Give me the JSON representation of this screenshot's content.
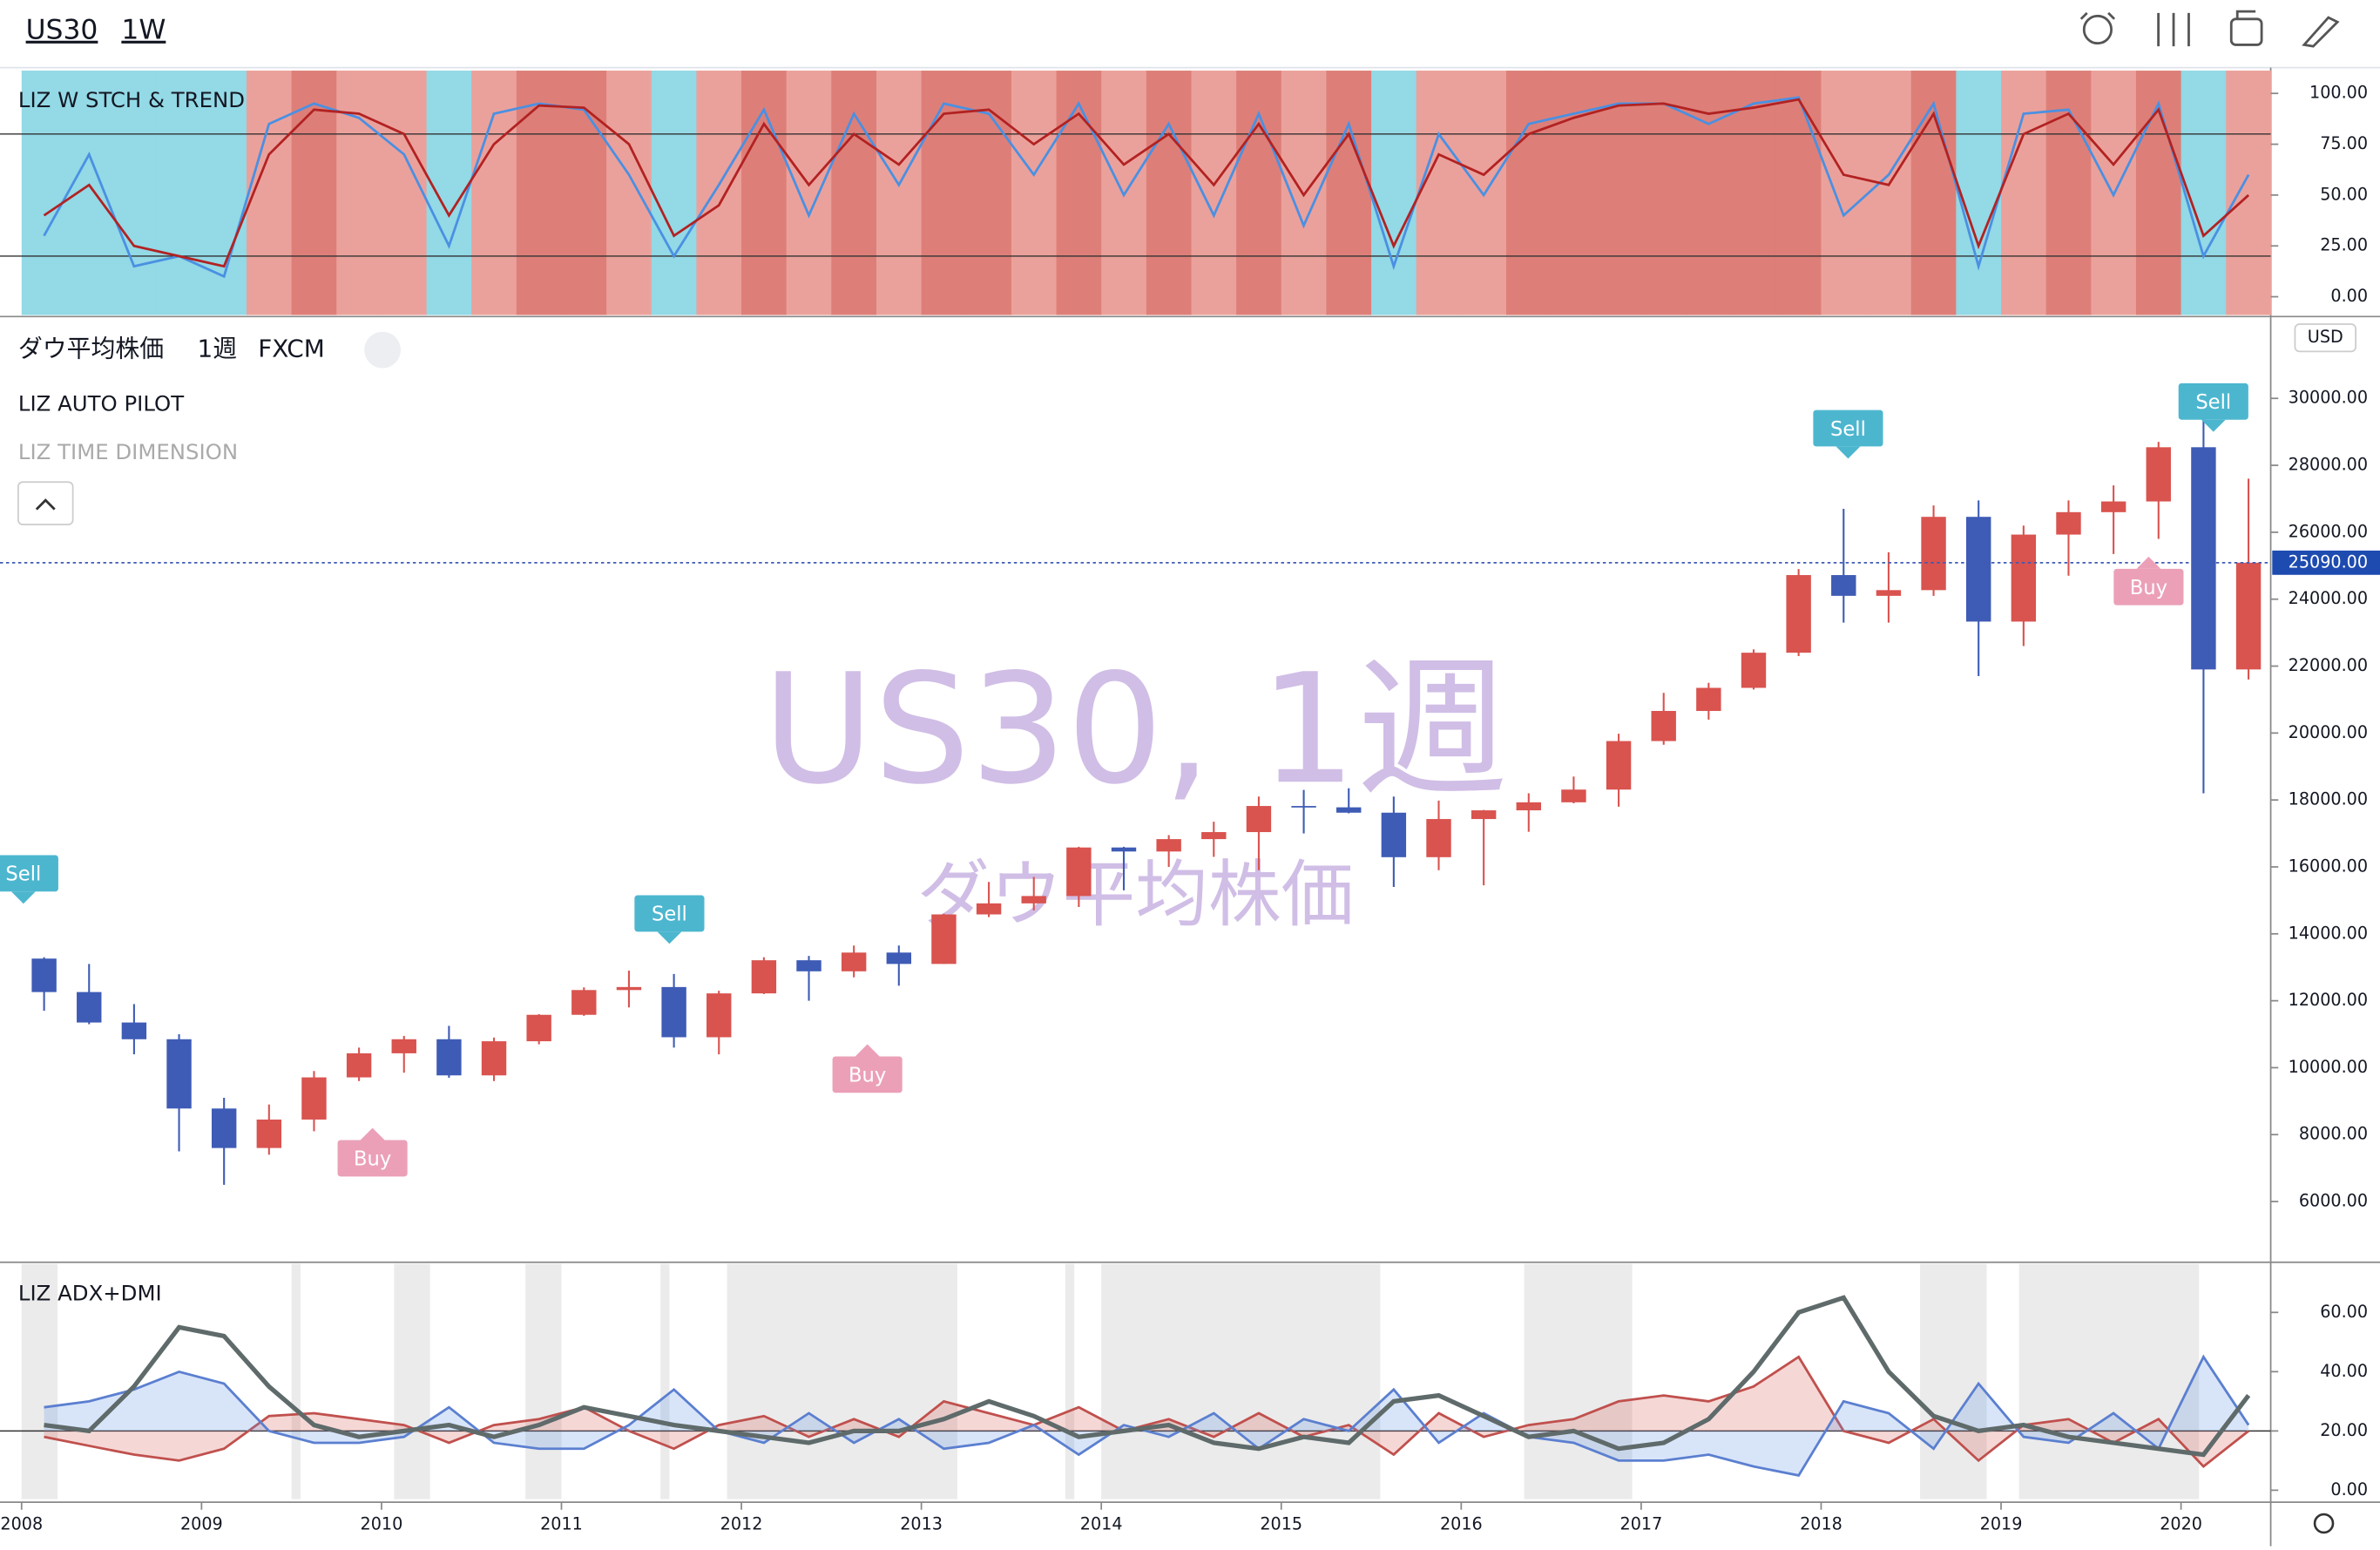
{
  "header": {
    "symbol": "US30",
    "interval": "1W"
  },
  "chart_data": [
    {
      "type": "line",
      "title": "LIZ W STCH & TREND",
      "x": [
        2008.125,
        2008.375,
        2008.625,
        2008.875,
        2009.125,
        2009.375,
        2009.625,
        2009.875,
        2010.125,
        2010.375,
        2010.625,
        2010.875,
        2011.125,
        2011.375,
        2011.625,
        2011.875,
        2012.125,
        2012.375,
        2012.625,
        2012.875,
        2013.125,
        2013.375,
        2013.625,
        2013.875,
        2014.125,
        2014.375,
        2014.625,
        2014.875,
        2015.125,
        2015.375,
        2015.625,
        2015.875,
        2016.125,
        2016.375,
        2016.625,
        2016.875,
        2017.125,
        2017.375,
        2017.625,
        2017.875,
        2018.125,
        2018.375,
        2018.625,
        2018.875,
        2019.125,
        2019.375,
        2019.625,
        2019.875,
        2020.125,
        2020.375
      ],
      "series": [
        {
          "color": "#4a90e2",
          "values": [
            30,
            70,
            15,
            20,
            10,
            85,
            95,
            88,
            70,
            25,
            90,
            95,
            92,
            60,
            20,
            55,
            92,
            40,
            90,
            55,
            95,
            90,
            60,
            95,
            50,
            85,
            40,
            90,
            35,
            85,
            15,
            80,
            50,
            85,
            90,
            95,
            95,
            85,
            95,
            98,
            40,
            60,
            95,
            15,
            90,
            92,
            50,
            95,
            20,
            60
          ]
        },
        {
          "color": "#b22222",
          "values": [
            40,
            55,
            25,
            20,
            15,
            70,
            92,
            90,
            80,
            40,
            75,
            94,
            93,
            75,
            30,
            45,
            85,
            55,
            80,
            65,
            90,
            92,
            75,
            90,
            65,
            80,
            55,
            85,
            50,
            80,
            25,
            70,
            60,
            80,
            88,
            94,
            95,
            90,
            93,
            97,
            60,
            55,
            90,
            25,
            80,
            90,
            65,
            92,
            30,
            50
          ]
        }
      ],
      "zone_palette": [
        "#93d9e6",
        "#eba19b",
        "#dd7f78"
      ],
      "zones": [
        0,
        0,
        0,
        0,
        0,
        1,
        2,
        1,
        1,
        0,
        1,
        2,
        2,
        1,
        0,
        1,
        2,
        1,
        2,
        1,
        2,
        2,
        1,
        2,
        1,
        2,
        1,
        2,
        1,
        2,
        0,
        1,
        1,
        2,
        2,
        2,
        2,
        2,
        2,
        2,
        1,
        1,
        2,
        0,
        1,
        2,
        1,
        2,
        0,
        1
      ],
      "ylim": [
        -9,
        111.2
      ],
      "yticks": [
        {
          "value": 0,
          "label": "0.00"
        },
        {
          "value": 25,
          "label": "25.00"
        },
        {
          "value": 50,
          "label": "50.00"
        },
        {
          "value": 75,
          "label": "75.00"
        },
        {
          "value": 100,
          "label": "100.00"
        }
      ],
      "levels": [
        80,
        20
      ]
    },
    {
      "type": "candlestick",
      "title": "ダウ平均株価",
      "interval": "1週",
      "source": "FXCM",
      "indicators": [
        "LIZ AUTO PILOT",
        "LIZ TIME DIMENSION"
      ],
      "watermark": [
        "US30, 1週",
        "ダウ平均株価"
      ],
      "x": [
        2008.125,
        2008.375,
        2008.625,
        2008.875,
        2009.125,
        2009.375,
        2009.625,
        2009.875,
        2010.125,
        2010.375,
        2010.625,
        2010.875,
        2011.125,
        2011.375,
        2011.625,
        2011.875,
        2012.125,
        2012.375,
        2012.625,
        2012.875,
        2013.125,
        2013.375,
        2013.625,
        2013.875,
        2014.125,
        2014.375,
        2014.625,
        2014.875,
        2015.125,
        2015.375,
        2015.625,
        2015.875,
        2016.125,
        2016.375,
        2016.625,
        2016.875,
        2017.125,
        2017.375,
        2017.625,
        2017.875,
        2018.125,
        2018.375,
        2018.625,
        2018.875,
        2019.125,
        2019.375,
        2019.625,
        2019.875,
        2020.125,
        2020.375
      ],
      "open": [
        13260,
        12260,
        11350,
        10850,
        8780,
        7600,
        8450,
        9710,
        10430,
        10850,
        9770,
        10790,
        11580,
        12320,
        12410,
        10910,
        12220,
        13210,
        12880,
        13440,
        13100,
        14580,
        14910,
        15130,
        16580,
        16460,
        16830,
        17040,
        17820,
        17780,
        17620,
        16290,
        17430,
        17690,
        17930,
        18310,
        19760,
        20660,
        21350,
        22400,
        24720,
        24100,
        24270,
        26460,
        23330,
        25930,
        26600,
        26920,
        28540,
        21900
      ],
      "high": [
        13300,
        13100,
        11900,
        11000,
        9100,
        8900,
        9900,
        10600,
        10950,
        11250,
        10900,
        11600,
        12400,
        12900,
        12800,
        12300,
        13300,
        13340,
        13650,
        13650,
        14600,
        15550,
        15700,
        16600,
        16600,
        16950,
        17350,
        18100,
        18300,
        18350,
        18100,
        17980,
        17700,
        18200,
        18700,
        19980,
        21200,
        21500,
        22500,
        24900,
        26700,
        25400,
        26800,
        26950,
        26200,
        26950,
        27400,
        28700,
        29600,
        27600
      ],
      "low": [
        11700,
        11300,
        10400,
        7500,
        6500,
        7400,
        8100,
        9600,
        9850,
        9700,
        9600,
        10700,
        11550,
        11800,
        10600,
        10400,
        12200,
        12000,
        12700,
        12450,
        13100,
        14500,
        14700,
        14800,
        15300,
        16000,
        16300,
        15900,
        17000,
        17600,
        15400,
        15900,
        15450,
        17050,
        17900,
        17800,
        19650,
        20400,
        21300,
        22300,
        23300,
        23300,
        24100,
        21700,
        22600,
        24700,
        25350,
        25800,
        18200,
        21600
      ],
      "close": [
        12260,
        11350,
        10850,
        8780,
        7600,
        8450,
        9710,
        10430,
        10850,
        9770,
        10790,
        11580,
        12320,
        12410,
        10910,
        12220,
        13210,
        12880,
        13440,
        13100,
        14580,
        14910,
        15130,
        16580,
        16460,
        16830,
        17040,
        17820,
        17780,
        17620,
        16290,
        17430,
        17690,
        17930,
        18310,
        19760,
        20660,
        21350,
        22400,
        24720,
        24100,
        24270,
        26460,
        23330,
        25930,
        26600,
        26920,
        28540,
        21900,
        25090
      ],
      "up_color": "#d9534f",
      "down_color": "#3e5bb5",
      "ylim": [
        4230,
        32400
      ],
      "yticks": [
        {
          "value": 6000,
          "label": "6000.00"
        },
        {
          "value": 8000,
          "label": "8000.00"
        },
        {
          "value": 10000,
          "label": "10000.00"
        },
        {
          "value": 12000,
          "label": "12000.00"
        },
        {
          "value": 14000,
          "label": "14000.00"
        },
        {
          "value": 16000,
          "label": "16000.00"
        },
        {
          "value": 18000,
          "label": "18000.00"
        },
        {
          "value": 20000,
          "label": "20000.00"
        },
        {
          "value": 22000,
          "label": "22000.00"
        },
        {
          "value": 24000,
          "label": "24000.00"
        },
        {
          "value": 26000,
          "label": "26000.00"
        },
        {
          "value": 28000,
          "label": "28000.00"
        },
        {
          "value": 30000,
          "label": "30000.00"
        }
      ],
      "y_unit": "USD",
      "last_price": {
        "value": 25090,
        "label": "25090.00"
      },
      "signals": [
        {
          "label": "Sell",
          "x": 2008.01,
          "value": 14900
        },
        {
          "label": "Buy",
          "x": 2009.95,
          "value": 8200
        },
        {
          "label": "Sell",
          "x": 2011.6,
          "value": 13700
        },
        {
          "label": "Buy",
          "x": 2012.7,
          "value": 10700
        },
        {
          "label": "Sell",
          "x": 2018.15,
          "value": 28200
        },
        {
          "label": "Buy",
          "x": 2019.82,
          "value": 25270
        },
        {
          "label": "Sell",
          "x": 2020.18,
          "value": 29000
        }
      ],
      "sell_color": "#4db6cf",
      "buy_color": "#eba0b8"
    },
    {
      "type": "line",
      "title": "LIZ ADX+DMI",
      "x": [
        2008.125,
        2008.375,
        2008.625,
        2008.875,
        2009.125,
        2009.375,
        2009.625,
        2009.875,
        2010.125,
        2010.375,
        2010.625,
        2010.875,
        2011.125,
        2011.375,
        2011.625,
        2011.875,
        2012.125,
        2012.375,
        2012.625,
        2012.875,
        2013.125,
        2013.375,
        2013.625,
        2013.875,
        2014.125,
        2014.375,
        2014.625,
        2014.875,
        2015.125,
        2015.375,
        2015.625,
        2015.875,
        2016.125,
        2016.375,
        2016.625,
        2016.875,
        2017.125,
        2017.375,
        2017.625,
        2017.875,
        2018.125,
        2018.375,
        2018.625,
        2018.875,
        2019.125,
        2019.375,
        2019.625,
        2019.875,
        2020.125,
        2020.375
      ],
      "series": [
        {
          "color": "#c0504d",
          "fill": "rgba(217,100,90,0.25)",
          "values": [
            18,
            15,
            12,
            10,
            14,
            25,
            26,
            24,
            22,
            16,
            22,
            24,
            28,
            20,
            14,
            22,
            25,
            18,
            24,
            18,
            30,
            26,
            22,
            28,
            20,
            24,
            18,
            26,
            18,
            22,
            12,
            26,
            18,
            22,
            24,
            30,
            32,
            30,
            35,
            45,
            20,
            16,
            24,
            10,
            22,
            24,
            16,
            24,
            8,
            20
          ]
        },
        {
          "color": "#5b7fd0",
          "fill": "rgba(100,150,230,0.25)",
          "values": [
            28,
            30,
            34,
            40,
            36,
            20,
            16,
            16,
            18,
            28,
            16,
            14,
            14,
            22,
            34,
            20,
            16,
            26,
            16,
            24,
            14,
            16,
            22,
            12,
            22,
            18,
            26,
            14,
            24,
            20,
            34,
            16,
            26,
            18,
            16,
            10,
            10,
            12,
            8,
            5,
            30,
            26,
            14,
            36,
            18,
            16,
            26,
            14,
            45,
            22
          ]
        },
        {
          "color": "#5f6a6a",
          "values": [
            22,
            20,
            35,
            55,
            52,
            35,
            22,
            18,
            20,
            22,
            18,
            22,
            28,
            25,
            22,
            20,
            18,
            16,
            20,
            20,
            24,
            30,
            25,
            18,
            20,
            22,
            16,
            14,
            18,
            16,
            30,
            32,
            25,
            18,
            20,
            14,
            16,
            24,
            40,
            60,
            65,
            40,
            25,
            20,
            22,
            18,
            16,
            14,
            12,
            32
          ]
        }
      ],
      "shaded": [
        [
          2008.0,
          2008.2
        ],
        [
          2009.5,
          2009.55
        ],
        [
          2010.07,
          2010.27
        ],
        [
          2010.8,
          2011.0
        ],
        [
          2011.55,
          2011.6
        ],
        [
          2011.92,
          2013.2
        ],
        [
          2013.8,
          2013.85
        ],
        [
          2014.0,
          2015.55
        ],
        [
          2016.35,
          2016.95
        ],
        [
          2018.55,
          2018.92
        ],
        [
          2019.1,
          2020.1
        ]
      ],
      "shade_color": "#ebebeb",
      "ylim": [
        -3,
        76.4
      ],
      "yticks": [
        {
          "value": 0,
          "label": "0.00"
        },
        {
          "value": 20,
          "label": "20.00"
        },
        {
          "value": 40,
          "label": "40.00"
        },
        {
          "value": 60,
          "label": "60.00"
        }
      ],
      "levels": [
        20
      ],
      "xlim": [
        2007.88,
        2020.49
      ],
      "xticks": [
        2008,
        2009,
        2010,
        2011,
        2012,
        2013,
        2014,
        2015,
        2016,
        2017,
        2018,
        2019,
        2020
      ]
    }
  ]
}
